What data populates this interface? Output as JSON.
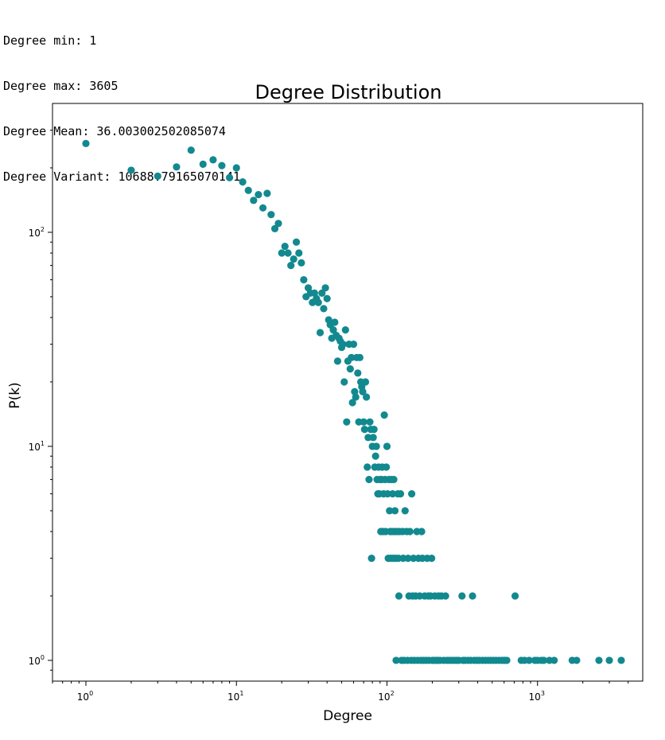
{
  "stats": {
    "lines": [
      "Degree min: 1",
      "Degree max: 3605",
      "Degree Mean: 36.003002502085074",
      "Degree Variant: 10688.79165070141"
    ]
  },
  "colors": {
    "marker": "#12898f",
    "axis": "#000000",
    "background": "#ffffff"
  },
  "chart_data": {
    "type": "scatter",
    "title": "Degree Distribution",
    "xlabel": "Degree",
    "ylabel": "P(k)",
    "xscale": "log",
    "yscale": "log",
    "xlim": [
      0.6,
      5000
    ],
    "ylim": [
      0.8,
      400
    ],
    "grid": false,
    "x_ticks": [
      {
        "label": "10",
        "exp": "0",
        "value": 1
      },
      {
        "label": "10",
        "exp": "1",
        "value": 10
      },
      {
        "label": "10",
        "exp": "2",
        "value": 100
      },
      {
        "label": "10",
        "exp": "3",
        "value": 1000
      }
    ],
    "y_ticks": [
      {
        "label": "10",
        "exp": "0",
        "value": 1
      },
      {
        "label": "10",
        "exp": "1",
        "value": 10
      },
      {
        "label": "10",
        "exp": "2",
        "value": 100
      }
    ],
    "points": [
      [
        1,
        260
      ],
      [
        2,
        195
      ],
      [
        3,
        183
      ],
      [
        4,
        202
      ],
      [
        5,
        242
      ],
      [
        6,
        208
      ],
      [
        7,
        218
      ],
      [
        8,
        205
      ],
      [
        9,
        180
      ],
      [
        10,
        200
      ],
      [
        11,
        172
      ],
      [
        12,
        157
      ],
      [
        13,
        141
      ],
      [
        14,
        150
      ],
      [
        15,
        130
      ],
      [
        16,
        152
      ],
      [
        17,
        121
      ],
      [
        18,
        104
      ],
      [
        19,
        110
      ],
      [
        20,
        80
      ],
      [
        21,
        86
      ],
      [
        22,
        80
      ],
      [
        23,
        70
      ],
      [
        24,
        75
      ],
      [
        25,
        90
      ],
      [
        26,
        80
      ],
      [
        27,
        72
      ],
      [
        28,
        60
      ],
      [
        29,
        50
      ],
      [
        30,
        55
      ],
      [
        31,
        52
      ],
      [
        32,
        47
      ],
      [
        33,
        52
      ],
      [
        34,
        49
      ],
      [
        35,
        47
      ],
      [
        36,
        34
      ],
      [
        37,
        52
      ],
      [
        38,
        44
      ],
      [
        39,
        55
      ],
      [
        40,
        49
      ],
      [
        41,
        39
      ],
      [
        42,
        37
      ],
      [
        43,
        32
      ],
      [
        44,
        35
      ],
      [
        45,
        38
      ],
      [
        46,
        33
      ],
      [
        47,
        25
      ],
      [
        48,
        32
      ],
      [
        49,
        31
      ],
      [
        50,
        29
      ],
      [
        51,
        30
      ],
      [
        52,
        20
      ],
      [
        53,
        35
      ],
      [
        54,
        13
      ],
      [
        55,
        25
      ],
      [
        56,
        30
      ],
      [
        57,
        23
      ],
      [
        58,
        26
      ],
      [
        59,
        16
      ],
      [
        60,
        30
      ],
      [
        61,
        18
      ],
      [
        62,
        17
      ],
      [
        63,
        26
      ],
      [
        64,
        22
      ],
      [
        65,
        13
      ],
      [
        66,
        26
      ],
      [
        67,
        20
      ],
      [
        68,
        19
      ],
      [
        69,
        18
      ],
      [
        70,
        13
      ],
      [
        71,
        12
      ],
      [
        72,
        20
      ],
      [
        73,
        17
      ],
      [
        74,
        8
      ],
      [
        75,
        11
      ],
      [
        76,
        7
      ],
      [
        77,
        13
      ],
      [
        78,
        12
      ],
      [
        79,
        3
      ],
      [
        80,
        10
      ],
      [
        81,
        11
      ],
      [
        82,
        12
      ],
      [
        83,
        8
      ],
      [
        84,
        9
      ],
      [
        85,
        10
      ],
      [
        86,
        7
      ],
      [
        87,
        6
      ],
      [
        88,
        8
      ],
      [
        89,
        6
      ],
      [
        90,
        7
      ],
      [
        91,
        4
      ],
      [
        92,
        7
      ],
      [
        93,
        8
      ],
      [
        94,
        4
      ],
      [
        95,
        6
      ],
      [
        96,
        14
      ],
      [
        97,
        7
      ],
      [
        98,
        4
      ],
      [
        99,
        8
      ],
      [
        100,
        10
      ],
      [
        101,
        6
      ],
      [
        102,
        3
      ],
      [
        103,
        7
      ],
      [
        104,
        5
      ],
      [
        105,
        4
      ],
      [
        106,
        3
      ],
      [
        107,
        7
      ],
      [
        108,
        4
      ],
      [
        109,
        6
      ],
      [
        110,
        3
      ],
      [
        111,
        7
      ],
      [
        112,
        4
      ],
      [
        113,
        5
      ],
      [
        114,
        3
      ],
      [
        115,
        1
      ],
      [
        116,
        4
      ],
      [
        118,
        6
      ],
      [
        119,
        3
      ],
      [
        120,
        2
      ],
      [
        121,
        4
      ],
      [
        123,
        6
      ],
      [
        125,
        1
      ],
      [
        127,
        4
      ],
      [
        128,
        3
      ],
      [
        130,
        1
      ],
      [
        132,
        5
      ],
      [
        135,
        4
      ],
      [
        137,
        1
      ],
      [
        138,
        3
      ],
      [
        140,
        2
      ],
      [
        142,
        4
      ],
      [
        145,
        1
      ],
      [
        146,
        6
      ],
      [
        148,
        2
      ],
      [
        150,
        3
      ],
      [
        152,
        1
      ],
      [
        155,
        2
      ],
      [
        158,
        4
      ],
      [
        160,
        1
      ],
      [
        162,
        3
      ],
      [
        165,
        2
      ],
      [
        168,
        1
      ],
      [
        170,
        4
      ],
      [
        172,
        3
      ],
      [
        175,
        1
      ],
      [
        178,
        2
      ],
      [
        182,
        1
      ],
      [
        185,
        3
      ],
      [
        188,
        2
      ],
      [
        190,
        1
      ],
      [
        195,
        2
      ],
      [
        198,
        3
      ],
      [
        200,
        1
      ],
      [
        205,
        1
      ],
      [
        208,
        2
      ],
      [
        212,
        1
      ],
      [
        218,
        1
      ],
      [
        220,
        2
      ],
      [
        225,
        1
      ],
      [
        230,
        2
      ],
      [
        238,
        1
      ],
      [
        245,
        2
      ],
      [
        250,
        1
      ],
      [
        260,
        1
      ],
      [
        270,
        1
      ],
      [
        280,
        1
      ],
      [
        290,
        1
      ],
      [
        300,
        1
      ],
      [
        315,
        2
      ],
      [
        320,
        1
      ],
      [
        330,
        1
      ],
      [
        345,
        1
      ],
      [
        360,
        1
      ],
      [
        370,
        2
      ],
      [
        380,
        1
      ],
      [
        395,
        1
      ],
      [
        410,
        1
      ],
      [
        430,
        1
      ],
      [
        450,
        1
      ],
      [
        470,
        1
      ],
      [
        490,
        1
      ],
      [
        510,
        1
      ],
      [
        530,
        1
      ],
      [
        555,
        1
      ],
      [
        580,
        1
      ],
      [
        600,
        1
      ],
      [
        625,
        1
      ],
      [
        710,
        2
      ],
      [
        780,
        1
      ],
      [
        820,
        1
      ],
      [
        880,
        1
      ],
      [
        960,
        1
      ],
      [
        1000,
        1
      ],
      [
        1060,
        1
      ],
      [
        1100,
        1
      ],
      [
        1200,
        1
      ],
      [
        1290,
        1
      ],
      [
        1700,
        1
      ],
      [
        1820,
        1
      ],
      [
        2560,
        1
      ],
      [
        3000,
        1
      ],
      [
        3600,
        1
      ]
    ]
  }
}
